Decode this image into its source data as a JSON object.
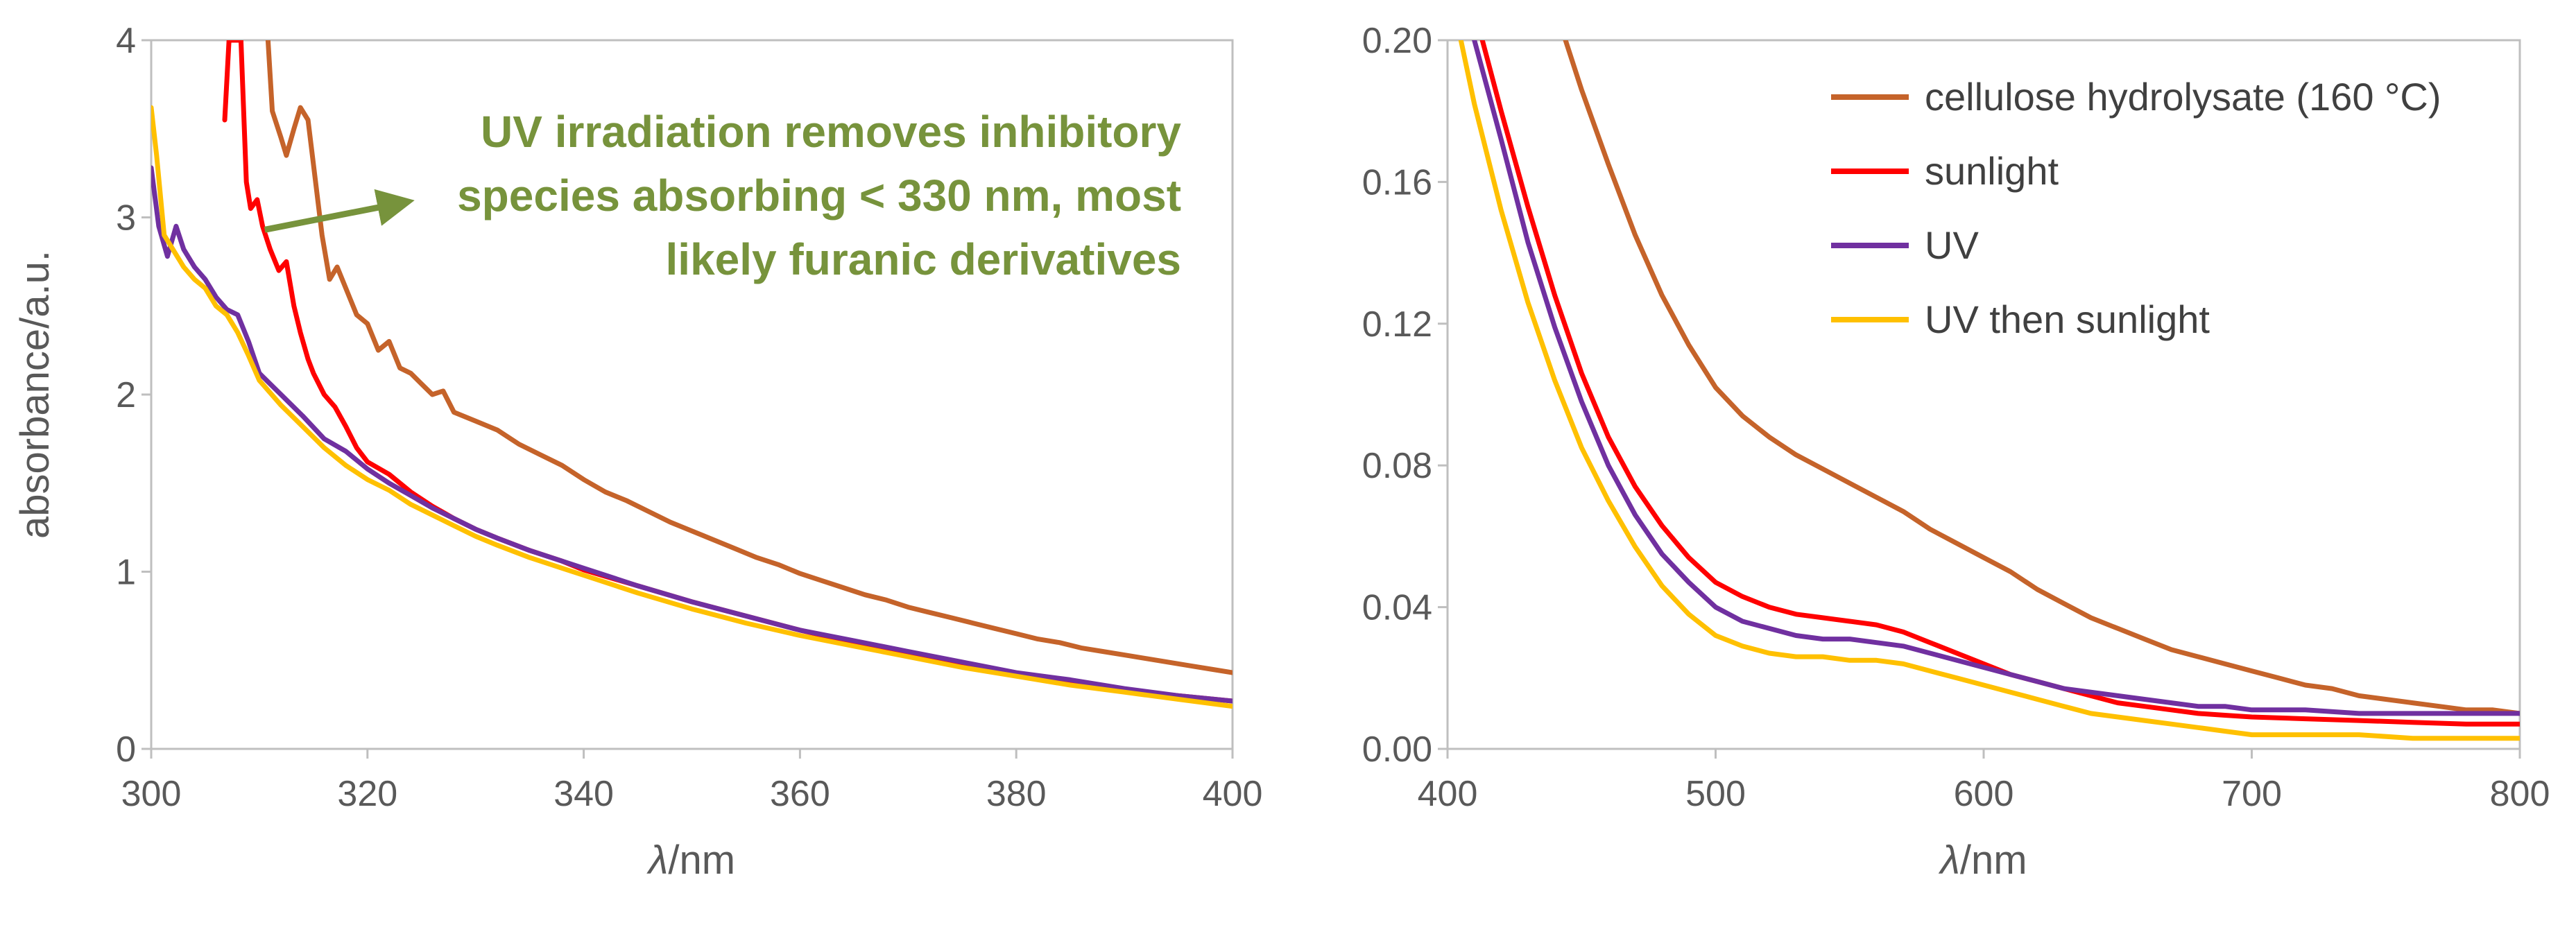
{
  "chart_data": [
    {
      "type": "line",
      "panel": "left",
      "title": "",
      "xlabel_italic": "λ",
      "xlabel_unit": "/nm",
      "ylabel": "absorbance/a.u.",
      "xlim": [
        300,
        400
      ],
      "ylim": [
        0,
        4
      ],
      "xticks": [
        "300",
        "320",
        "340",
        "360",
        "380",
        "400"
      ],
      "yticks": [
        "0",
        "1",
        "2",
        "3",
        "4"
      ],
      "grid": false,
      "annotation": {
        "lines": [
          "UV irradiation removes inhibitory",
          "species absorbing < 330 nm, most",
          "likely furanic derivatives"
        ],
        "color": "#77933c",
        "arrow_from": [
          310.5,
          2.93
        ],
        "arrow_to": [
          323,
          3.08
        ]
      },
      "series": [
        {
          "name": "cellulose hydrolysate (160 °C)",
          "color": "#c5632a",
          "x": [
            310.8,
            311.2,
            312,
            312.5,
            313.2,
            313.8,
            314.5,
            315,
            315.8,
            316.5,
            317.2,
            318,
            319,
            320,
            321,
            322,
            323,
            324,
            325,
            326,
            327,
            328,
            330,
            332,
            334,
            336,
            338,
            340,
            342,
            344,
            346,
            348,
            350,
            352,
            354,
            356,
            358,
            360,
            362,
            364,
            366,
            368,
            370,
            372,
            374,
            376,
            378,
            380,
            382,
            384,
            386,
            388,
            390,
            392,
            394,
            396,
            398,
            400
          ],
          "y": [
            4.0,
            3.6,
            3.45,
            3.35,
            3.5,
            3.62,
            3.55,
            3.3,
            2.9,
            2.65,
            2.72,
            2.6,
            2.45,
            2.4,
            2.25,
            2.3,
            2.15,
            2.12,
            2.06,
            2.0,
            2.02,
            1.9,
            1.85,
            1.8,
            1.72,
            1.66,
            1.6,
            1.52,
            1.45,
            1.4,
            1.34,
            1.28,
            1.23,
            1.18,
            1.13,
            1.08,
            1.04,
            0.99,
            0.95,
            0.91,
            0.87,
            0.84,
            0.8,
            0.77,
            0.74,
            0.71,
            0.68,
            0.65,
            0.62,
            0.6,
            0.57,
            0.55,
            0.53,
            0.51,
            0.49,
            0.47,
            0.45,
            0.43
          ]
        },
        {
          "name": "sunlight",
          "color": "#ff0000",
          "x": [
            306.8,
            307.2,
            308.3,
            308.8,
            309.2,
            309.8,
            310.3,
            311,
            311.8,
            312.5,
            313.2,
            313.8,
            314.5,
            315,
            316,
            317,
            318,
            319,
            320,
            322,
            324,
            326,
            328,
            330,
            332,
            335,
            338,
            340,
            345,
            350,
            355,
            360,
            365,
            370,
            375,
            380,
            385,
            390,
            395,
            400
          ],
          "y": [
            3.55,
            4.0,
            4.0,
            3.2,
            3.05,
            3.1,
            2.95,
            2.82,
            2.7,
            2.75,
            2.5,
            2.35,
            2.2,
            2.12,
            2.0,
            1.93,
            1.82,
            1.7,
            1.62,
            1.55,
            1.45,
            1.37,
            1.3,
            1.24,
            1.19,
            1.12,
            1.06,
            1.01,
            0.92,
            0.83,
            0.75,
            0.67,
            0.6,
            0.54,
            0.48,
            0.42,
            0.38,
            0.33,
            0.3,
            0.27
          ]
        },
        {
          "name": "UV",
          "color": "#7030a0",
          "x": [
            300,
            300.7,
            301.5,
            302.3,
            303,
            304,
            305,
            306,
            307,
            308,
            309,
            310,
            312,
            314,
            316,
            318,
            320,
            322,
            324,
            326,
            328,
            330,
            332,
            335,
            338,
            340,
            345,
            350,
            355,
            360,
            365,
            370,
            375,
            380,
            385,
            390,
            395,
            400
          ],
          "y": [
            3.28,
            2.95,
            2.78,
            2.95,
            2.82,
            2.72,
            2.65,
            2.55,
            2.48,
            2.45,
            2.3,
            2.12,
            2.0,
            1.88,
            1.75,
            1.68,
            1.58,
            1.5,
            1.43,
            1.36,
            1.3,
            1.24,
            1.19,
            1.12,
            1.06,
            1.02,
            0.92,
            0.83,
            0.75,
            0.67,
            0.61,
            0.55,
            0.49,
            0.43,
            0.39,
            0.34,
            0.3,
            0.27
          ]
        },
        {
          "name": "UV then sunlight",
          "color": "#ffc000",
          "x": [
            300,
            300.5,
            301.2,
            302,
            303,
            304,
            305,
            306,
            307,
            308,
            309,
            310,
            312,
            314,
            316,
            318,
            320,
            322,
            324,
            326,
            328,
            330,
            332,
            335,
            338,
            340,
            345,
            350,
            355,
            360,
            365,
            370,
            375,
            380,
            385,
            390,
            395,
            400
          ],
          "y": [
            3.62,
            3.35,
            2.9,
            2.82,
            2.72,
            2.65,
            2.6,
            2.5,
            2.45,
            2.35,
            2.22,
            2.08,
            1.94,
            1.82,
            1.7,
            1.6,
            1.52,
            1.46,
            1.38,
            1.32,
            1.26,
            1.2,
            1.15,
            1.08,
            1.02,
            0.98,
            0.88,
            0.79,
            0.71,
            0.64,
            0.58,
            0.52,
            0.46,
            0.41,
            0.36,
            0.32,
            0.28,
            0.24
          ]
        }
      ]
    },
    {
      "type": "line",
      "panel": "right",
      "title": "",
      "xlabel_italic": "λ",
      "xlabel_unit": "/nm",
      "ylabel": "",
      "xlim": [
        400,
        800
      ],
      "ylim": [
        0,
        0.2
      ],
      "xticks": [
        "400",
        "500",
        "600",
        "700",
        "800"
      ],
      "yticks": [
        "0.00",
        "0.04",
        "0.08",
        "0.12",
        "0.16",
        "0.20"
      ],
      "grid": false,
      "legend": {
        "placement": "top-right",
        "entries": [
          "cellulose hydrolysate (160 °C)",
          "sunlight",
          "UV",
          "UV then sunlight"
        ]
      },
      "series": [
        {
          "name": "cellulose hydrolysate (160 °C)",
          "color": "#c5632a",
          "x": [
            444,
            450,
            460,
            470,
            480,
            490,
            500,
            510,
            520,
            530,
            540,
            550,
            560,
            570,
            580,
            590,
            600,
            610,
            620,
            630,
            640,
            650,
            660,
            670,
            680,
            690,
            700,
            710,
            720,
            730,
            740,
            750,
            760,
            770,
            780,
            790,
            800
          ],
          "y": [
            0.2,
            0.186,
            0.165,
            0.145,
            0.128,
            0.114,
            0.102,
            0.094,
            0.088,
            0.083,
            0.079,
            0.075,
            0.071,
            0.067,
            0.062,
            0.058,
            0.054,
            0.05,
            0.045,
            0.041,
            0.037,
            0.034,
            0.031,
            0.028,
            0.026,
            0.024,
            0.022,
            0.02,
            0.018,
            0.017,
            0.015,
            0.014,
            0.013,
            0.012,
            0.011,
            0.011,
            0.01
          ]
        },
        {
          "name": "sunlight",
          "color": "#ff0000",
          "x": [
            413,
            420,
            430,
            440,
            450,
            460,
            470,
            480,
            490,
            500,
            510,
            520,
            530,
            540,
            550,
            560,
            570,
            580,
            590,
            600,
            610,
            620,
            630,
            640,
            650,
            660,
            670,
            680,
            690,
            700,
            720,
            740,
            760,
            780,
            800
          ],
          "y": [
            0.2,
            0.18,
            0.153,
            0.128,
            0.106,
            0.088,
            0.074,
            0.063,
            0.054,
            0.047,
            0.043,
            0.04,
            0.038,
            0.037,
            0.036,
            0.035,
            0.033,
            0.03,
            0.027,
            0.024,
            0.021,
            0.019,
            0.017,
            0.015,
            0.013,
            0.012,
            0.011,
            0.01,
            0.0095,
            0.009,
            0.0085,
            0.008,
            0.0075,
            0.007,
            0.007
          ]
        },
        {
          "name": "UV",
          "color": "#7030a0",
          "x": [
            410,
            420,
            430,
            440,
            450,
            460,
            470,
            480,
            490,
            500,
            510,
            520,
            530,
            540,
            550,
            560,
            570,
            580,
            590,
            600,
            610,
            620,
            630,
            640,
            650,
            660,
            670,
            680,
            690,
            700,
            720,
            740,
            760,
            780,
            800
          ],
          "y": [
            0.2,
            0.172,
            0.143,
            0.119,
            0.098,
            0.08,
            0.066,
            0.055,
            0.047,
            0.04,
            0.036,
            0.034,
            0.032,
            0.031,
            0.031,
            0.03,
            0.029,
            0.027,
            0.025,
            0.023,
            0.021,
            0.019,
            0.017,
            0.016,
            0.015,
            0.014,
            0.013,
            0.012,
            0.012,
            0.011,
            0.011,
            0.01,
            0.01,
            0.01,
            0.01
          ]
        },
        {
          "name": "UV then sunlight",
          "color": "#ffc000",
          "x": [
            405,
            410,
            420,
            430,
            440,
            450,
            460,
            470,
            480,
            490,
            500,
            510,
            520,
            530,
            540,
            550,
            560,
            570,
            580,
            590,
            600,
            610,
            620,
            630,
            640,
            650,
            660,
            670,
            680,
            690,
            700,
            720,
            740,
            760,
            780,
            800
          ],
          "y": [
            0.2,
            0.182,
            0.152,
            0.126,
            0.104,
            0.085,
            0.07,
            0.057,
            0.046,
            0.038,
            0.032,
            0.029,
            0.027,
            0.026,
            0.026,
            0.025,
            0.025,
            0.024,
            0.022,
            0.02,
            0.018,
            0.016,
            0.014,
            0.012,
            0.01,
            0.009,
            0.008,
            0.007,
            0.006,
            0.005,
            0.004,
            0.004,
            0.004,
            0.003,
            0.003,
            0.003
          ]
        }
      ]
    }
  ]
}
